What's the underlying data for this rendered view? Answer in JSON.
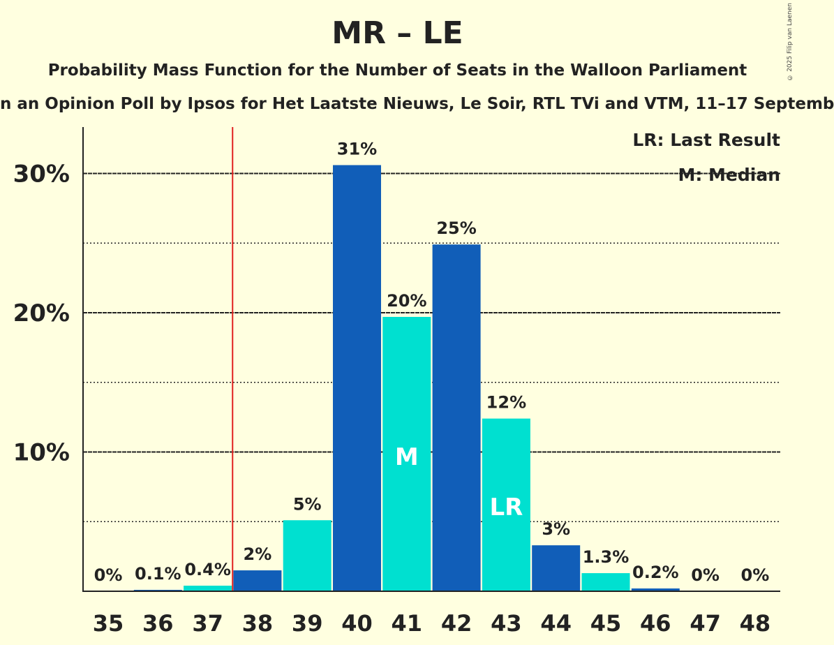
{
  "title": "MR – LE",
  "subtitle": "Probability Mass Function for the Number of Seats in the Walloon Parliament",
  "subtitle2": "n an Opinion Poll by Ipsos for Het Laatste Nieuws, Le Soir, RTL TVi and VTM, 11–17 Septemb",
  "copyright": "© 2025 Filip van Laenen",
  "legend": {
    "last_result": "LR: Last Result",
    "median": "M: Median"
  },
  "colors": {
    "dark": "#115EB8",
    "light": "#00E0D0",
    "last_result_line": "#E02020",
    "background": "#FFFFE0"
  },
  "chart_data": {
    "type": "bar",
    "categories": [
      "35",
      "36",
      "37",
      "38",
      "39",
      "40",
      "41",
      "42",
      "43",
      "44",
      "45",
      "46",
      "47",
      "48"
    ],
    "values": [
      0,
      0.1,
      0.4,
      1.5,
      5.1,
      30.6,
      19.7,
      24.9,
      12.4,
      3.3,
      1.3,
      0.2,
      0,
      0
    ],
    "labels": [
      "0%",
      "0.1%",
      "0.4%",
      "2%",
      "5%",
      "31%",
      "20%",
      "25%",
      "12%",
      "3%",
      "1.3%",
      "0.2%",
      "0%",
      "0%"
    ],
    "bar_colors": [
      "#115EB8",
      "#115EB8",
      "#00E0D0",
      "#115EB8",
      "#00E0D0",
      "#115EB8",
      "#00E0D0",
      "#115EB8",
      "#00E0D0",
      "#115EB8",
      "#00E0D0",
      "#115EB8",
      "#00E0D0",
      "#115EB8"
    ],
    "ylim": [
      0,
      33
    ],
    "yticks": [
      10,
      20,
      30
    ],
    "ytick_labels": [
      "10%",
      "20%",
      "30%"
    ],
    "minor_gridlines": [
      5,
      15,
      25
    ],
    "last_result_after": "37",
    "median_category": "41",
    "median_marker": "M",
    "last_result_category": "43",
    "last_result_marker": "LR",
    "legend_position": "top-right"
  }
}
